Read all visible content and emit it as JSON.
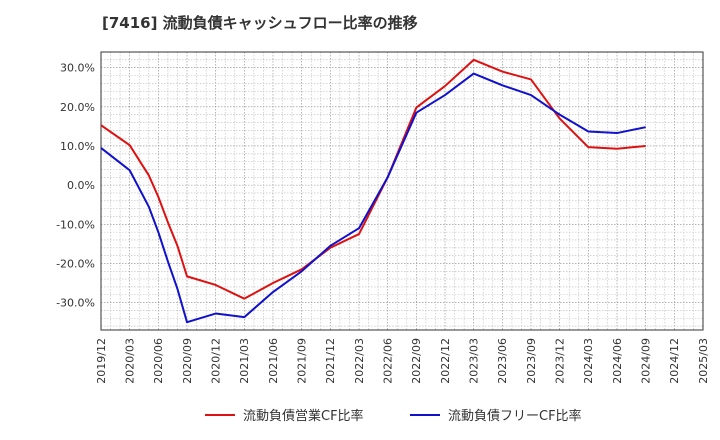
{
  "chart_data": {
    "type": "line",
    "title": "[7416]  流動負債キャッシュフロー比率の推移",
    "x": [
      "2019/12",
      "2020/03",
      "2020/06",
      "2020/09",
      "2020/12",
      "2021/03",
      "2021/06",
      "2021/09",
      "2021/12",
      "2022/03",
      "2022/06",
      "2022/09",
      "2022/12",
      "2023/03",
      "2023/06",
      "2023/09",
      "2023/12",
      "2024/03",
      "2024/06",
      "2024/09",
      "2024/12",
      "2025/03"
    ],
    "xlim": [
      "2019/12",
      "2025/03"
    ],
    "ylim": [
      -37,
      34
    ],
    "yticks": [
      30,
      20,
      10,
      0,
      -10,
      -20,
      -30
    ],
    "ytick_labels": [
      "30.0%",
      "20.0%",
      "10.0%",
      "0.0%",
      "-10.0%",
      "-20.0%",
      "-30.0%"
    ],
    "grid": true,
    "legend_position": "bottom",
    "series": [
      {
        "name": "流動負債営業CF比率",
        "color": "#dd1111",
        "points": [
          {
            "x": "2019/12",
            "y": 15.3
          },
          {
            "x": "2020/03",
            "y": 10.2
          },
          {
            "x": "2020/05",
            "y": 2.5
          },
          {
            "x": "2020/06",
            "y": -3.0
          },
          {
            "x": "2020/07",
            "y": -9.5
          },
          {
            "x": "2020/08",
            "y": -15.5
          },
          {
            "x": "2020/09",
            "y": -23.3
          },
          {
            "x": "2020/12",
            "y": -25.5
          },
          {
            "x": "2021/03",
            "y": -29.0
          },
          {
            "x": "2021/06",
            "y": -25.0
          },
          {
            "x": "2021/09",
            "y": -21.5
          },
          {
            "x": "2021/12",
            "y": -16.0
          },
          {
            "x": "2022/03",
            "y": -12.5
          },
          {
            "x": "2022/06",
            "y": 2.0
          },
          {
            "x": "2022/09",
            "y": 19.8
          },
          {
            "x": "2022/12",
            "y": 25.3
          },
          {
            "x": "2023/03",
            "y": 32.0
          },
          {
            "x": "2023/06",
            "y": 29.0
          },
          {
            "x": "2023/09",
            "y": 27.0
          },
          {
            "x": "2023/12",
            "y": 17.0
          },
          {
            "x": "2024/03",
            "y": 9.7
          },
          {
            "x": "2024/06",
            "y": 9.3
          },
          {
            "x": "2024/09",
            "y": 10.0
          }
        ]
      },
      {
        "name": "流動負債フリーCF比率",
        "color": "#1111cc",
        "points": [
          {
            "x": "2019/12",
            "y": 9.5
          },
          {
            "x": "2020/03",
            "y": 3.8
          },
          {
            "x": "2020/05",
            "y": -5.5
          },
          {
            "x": "2020/06",
            "y": -12.0
          },
          {
            "x": "2020/07",
            "y": -19.5
          },
          {
            "x": "2020/08",
            "y": -26.5
          },
          {
            "x": "2020/09",
            "y": -35.0
          },
          {
            "x": "2020/12",
            "y": -32.8
          },
          {
            "x": "2021/03",
            "y": -33.7
          },
          {
            "x": "2021/06",
            "y": -27.3
          },
          {
            "x": "2021/09",
            "y": -22.0
          },
          {
            "x": "2021/12",
            "y": -15.5
          },
          {
            "x": "2022/03",
            "y": -11.0
          },
          {
            "x": "2022/06",
            "y": 2.0
          },
          {
            "x": "2022/09",
            "y": 18.5
          },
          {
            "x": "2022/12",
            "y": 23.0
          },
          {
            "x": "2023/03",
            "y": 28.5
          },
          {
            "x": "2023/06",
            "y": 25.5
          },
          {
            "x": "2023/09",
            "y": 23.0
          },
          {
            "x": "2023/12",
            "y": 18.0
          },
          {
            "x": "2024/03",
            "y": 13.7
          },
          {
            "x": "2024/06",
            "y": 13.3
          },
          {
            "x": "2024/09",
            "y": 14.8
          }
        ]
      }
    ]
  }
}
